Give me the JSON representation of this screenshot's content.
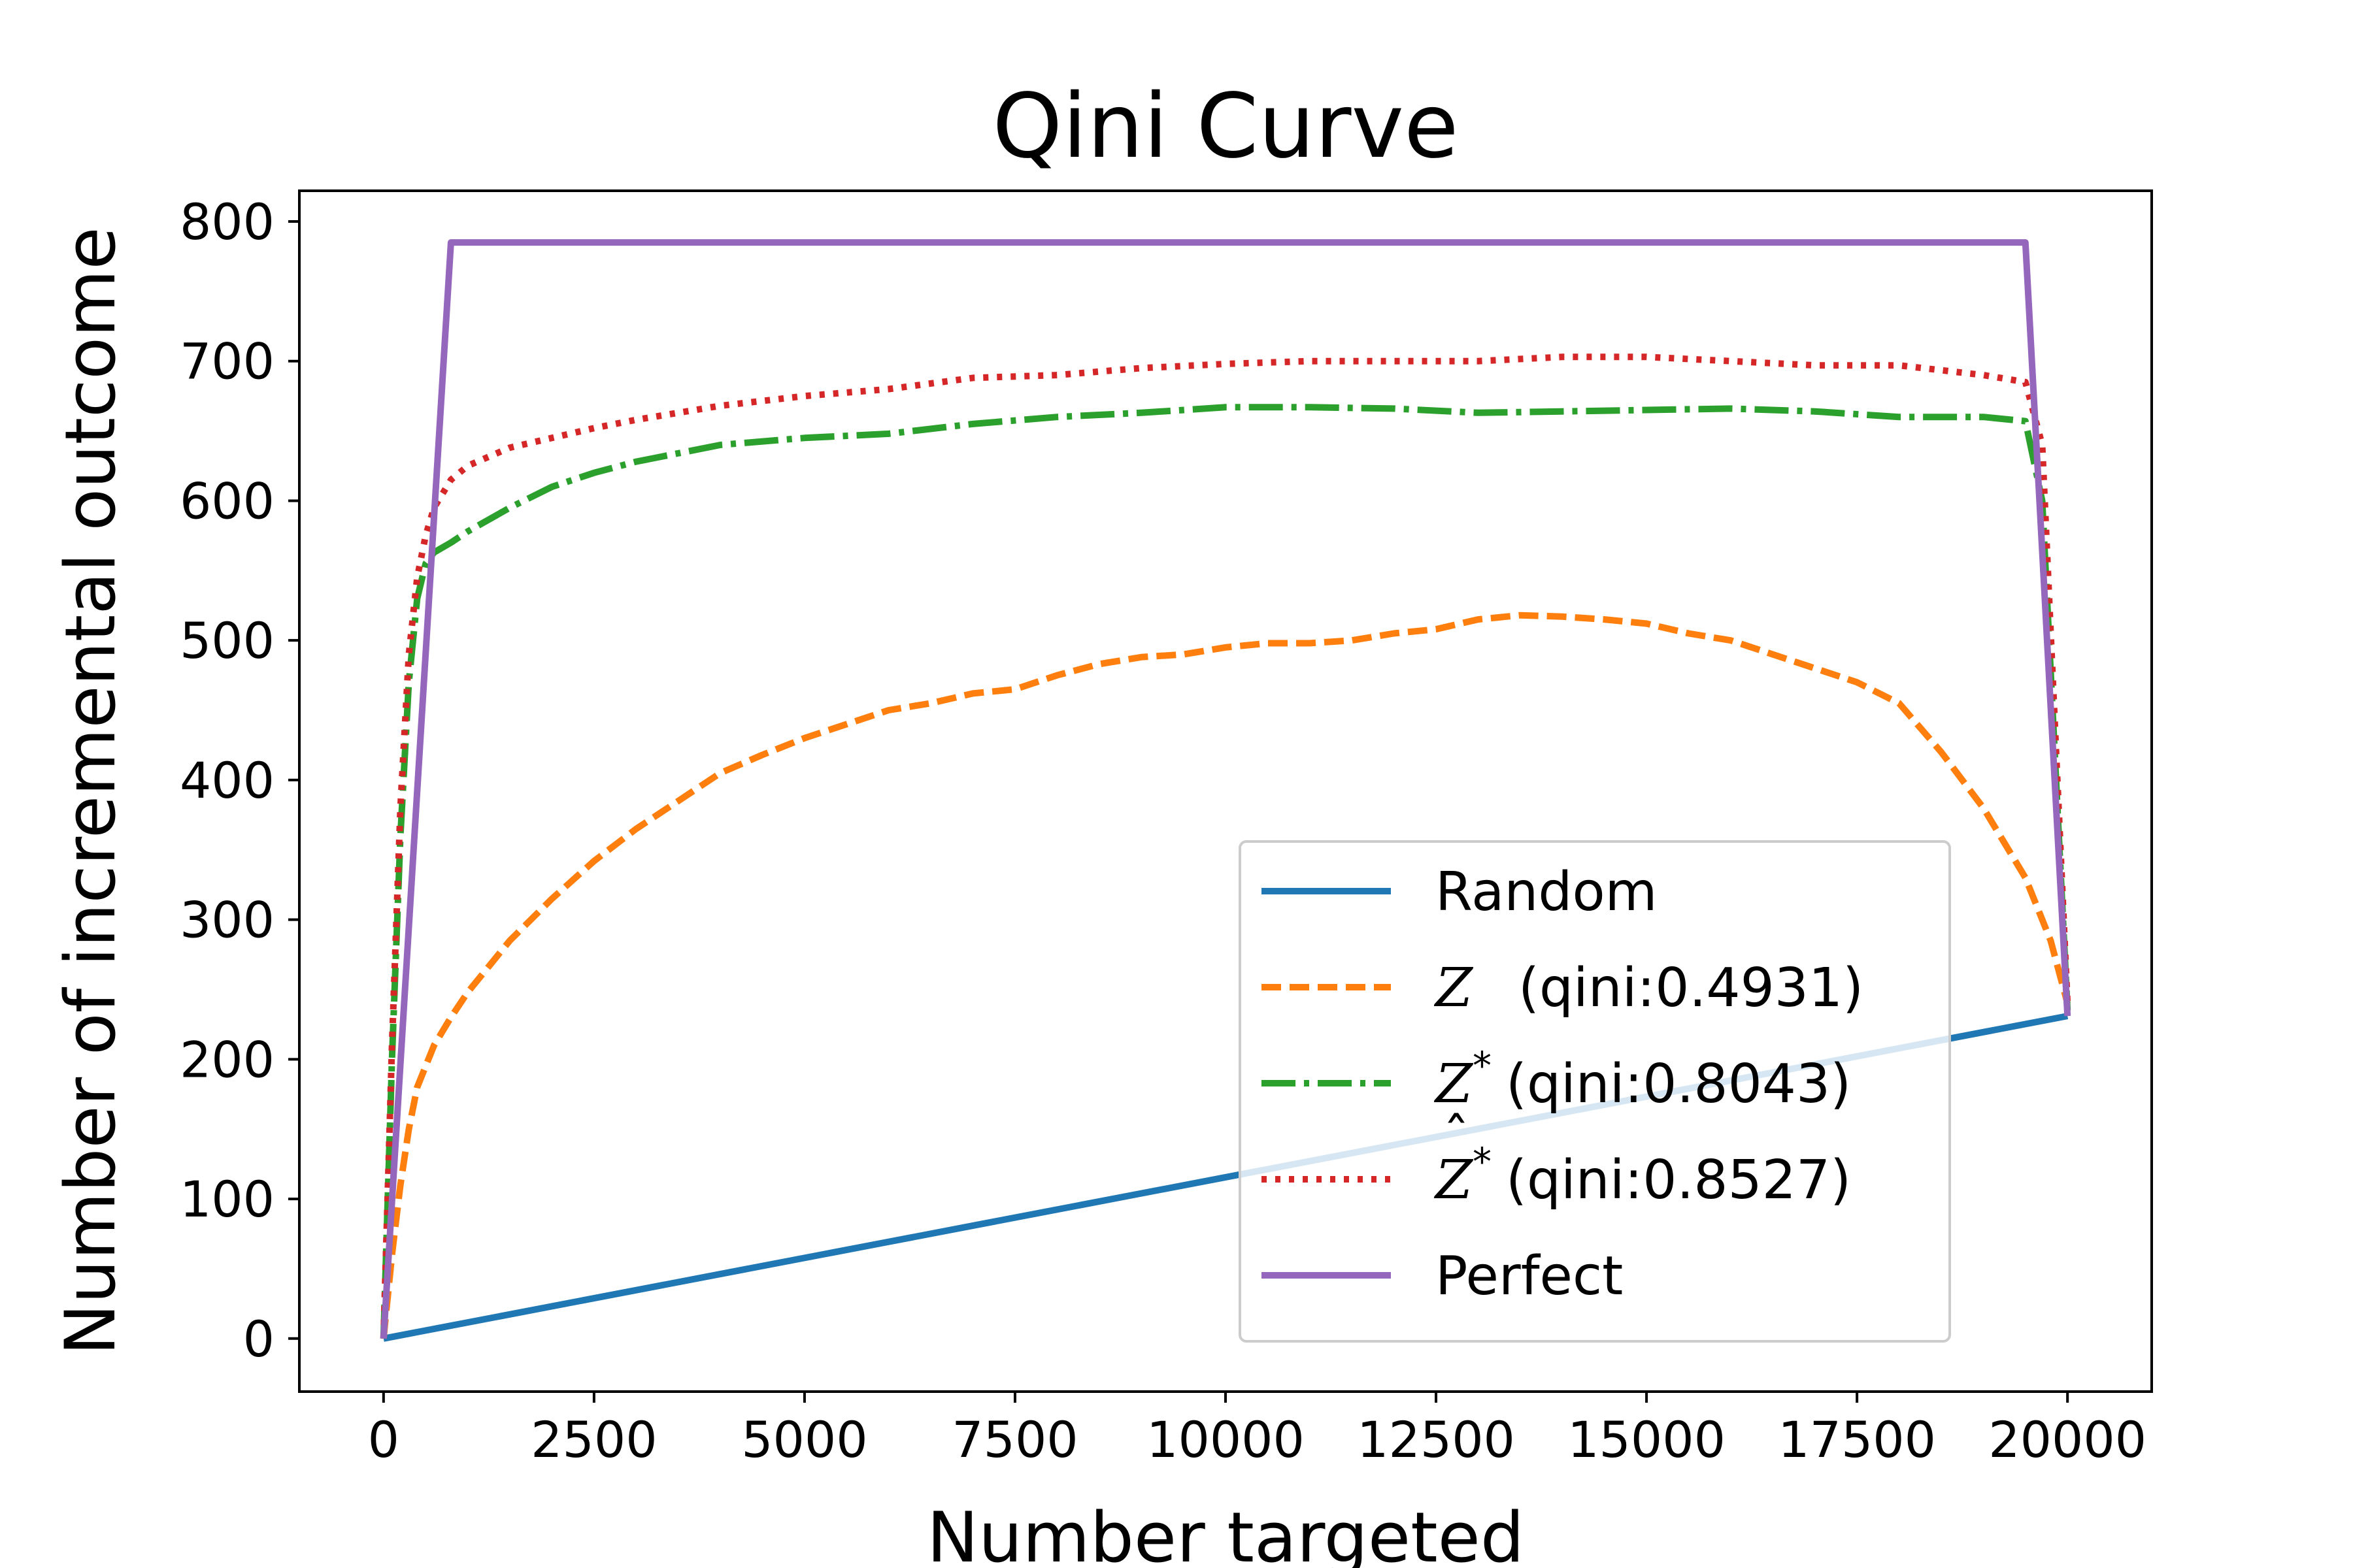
{
  "chart_data": {
    "type": "line",
    "title": "Qini Curve",
    "xlabel": "Number targeted",
    "ylabel": "Number of incremental outcome",
    "xlim": [
      -1000,
      21000
    ],
    "ylim": [
      -38,
      822
    ],
    "xticks": [
      0,
      2500,
      5000,
      7500,
      10000,
      12500,
      15000,
      17500,
      20000
    ],
    "yticks": [
      0,
      100,
      200,
      300,
      400,
      500,
      600,
      700,
      800
    ],
    "grid": false,
    "legend_position": "lower-right",
    "series": [
      {
        "name": "Random",
        "color": "#1f77b4",
        "dash": "solid",
        "x": [
          0,
          20000
        ],
        "y": [
          0,
          231
        ]
      },
      {
        "name": "Z (qini:0.4931)",
        "legend_symbol": "Z",
        "legend_sup": "",
        "legend_hat": false,
        "legend_suffix": "(qini:0.4931)",
        "color": "#ff7f0e",
        "dash": "dashed",
        "x": [
          0,
          100,
          200,
          300,
          400,
          600,
          800,
          1000,
          1500,
          2000,
          2500,
          3000,
          3500,
          4000,
          4500,
          5000,
          5500,
          6000,
          6500,
          7000,
          7500,
          8000,
          8500,
          9000,
          9500,
          10000,
          10500,
          11000,
          11500,
          12000,
          12500,
          13000,
          13500,
          14000,
          14500,
          15000,
          15500,
          16000,
          16500,
          17000,
          17500,
          18000,
          18500,
          19000,
          19500,
          19800,
          20000
        ],
        "y": [
          0,
          60,
          110,
          150,
          180,
          210,
          230,
          248,
          285,
          315,
          342,
          365,
          385,
          405,
          418,
          430,
          440,
          450,
          455,
          462,
          465,
          475,
          483,
          488,
          490,
          495,
          498,
          498,
          500,
          505,
          508,
          515,
          518,
          517,
          515,
          512,
          505,
          500,
          490,
          480,
          470,
          455,
          420,
          380,
          330,
          285,
          240
        ]
      },
      {
        "name": "Z* (qini:0.8043)",
        "legend_symbol": "Z",
        "legend_sup": "*",
        "legend_hat": false,
        "legend_suffix": "(qini:0.8043)",
        "color": "#2ca02c",
        "dash": "dashdot",
        "x": [
          0,
          100,
          200,
          300,
          400,
          500,
          600,
          800,
          1000,
          1500,
          2000,
          2500,
          3000,
          4000,
          5000,
          6000,
          7000,
          8000,
          9000,
          10000,
          11000,
          12000,
          13000,
          14000,
          15000,
          16000,
          17000,
          18000,
          19000,
          19500,
          19700,
          20000
        ],
        "y": [
          0,
          200,
          360,
          470,
          530,
          555,
          563,
          570,
          578,
          595,
          610,
          620,
          628,
          640,
          645,
          648,
          655,
          660,
          663,
          667,
          667,
          666,
          663,
          664,
          665,
          666,
          664,
          660,
          660,
          657,
          600,
          235
        ]
      },
      {
        "name": "Ẑ* (qini:0.8527)",
        "legend_symbol": "Z",
        "legend_sup": "*",
        "legend_hat": true,
        "legend_suffix": "(qini:0.8527)",
        "color": "#d62728",
        "dash": "dotted",
        "x": [
          0,
          100,
          200,
          300,
          400,
          500,
          600,
          800,
          1000,
          1500,
          2000,
          2500,
          3000,
          4000,
          5000,
          6000,
          7000,
          8000,
          9000,
          10000,
          11000,
          12000,
          13000,
          14000,
          15000,
          16000,
          17000,
          18000,
          19000,
          19500,
          19700,
          20000
        ],
        "y": [
          0,
          210,
          380,
          490,
          545,
          575,
          595,
          615,
          625,
          638,
          645,
          652,
          658,
          668,
          675,
          680,
          688,
          690,
          695,
          698,
          700,
          700,
          700,
          703,
          703,
          700,
          697,
          697,
          690,
          685,
          640,
          240
        ]
      },
      {
        "name": "Perfect",
        "color": "#9467bd",
        "dash": "solid",
        "x": [
          0,
          800,
          19500,
          20000
        ],
        "y": [
          0,
          785,
          785,
          231
        ]
      }
    ]
  }
}
